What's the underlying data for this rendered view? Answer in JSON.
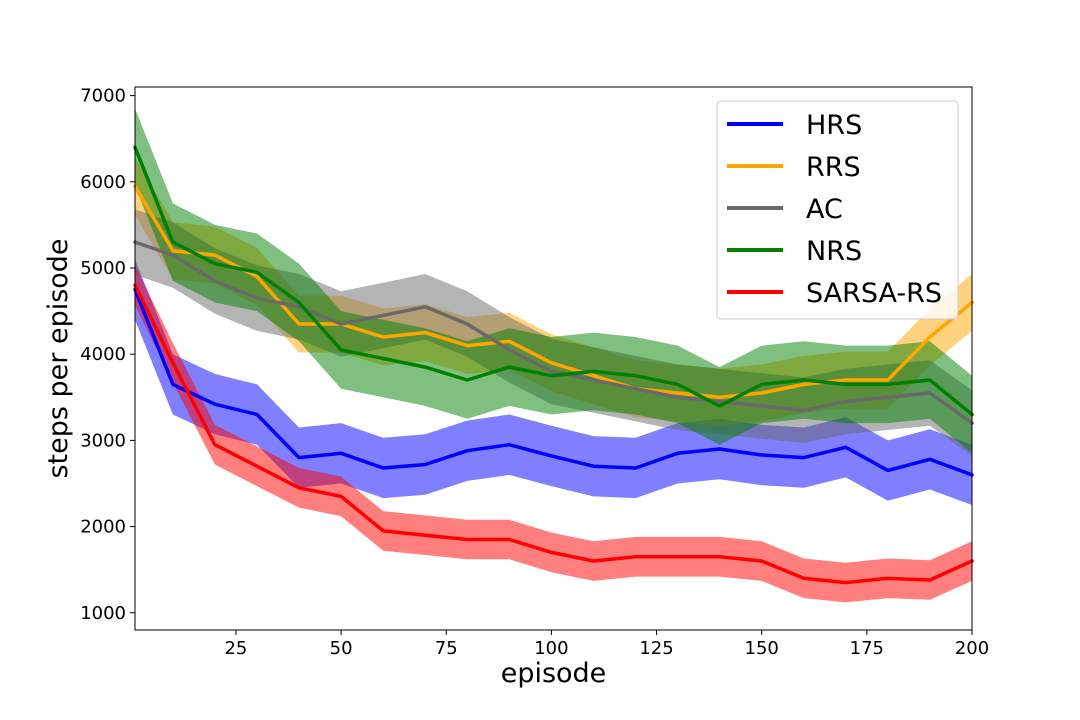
{
  "chart_data": {
    "type": "line",
    "title": "",
    "xlabel": "episode",
    "ylabel": "steps per episode",
    "xlim": [
      1,
      200
    ],
    "ylim": [
      800,
      7100
    ],
    "xticks": [
      25,
      50,
      75,
      100,
      125,
      150,
      175,
      200
    ],
    "yticks": [
      1000,
      2000,
      3000,
      4000,
      5000,
      6000,
      7000
    ],
    "grid": false,
    "legend_position": "top-right",
    "x": [
      1,
      10,
      20,
      30,
      40,
      50,
      60,
      70,
      80,
      90,
      100,
      110,
      120,
      130,
      140,
      150,
      160,
      170,
      180,
      190,
      200
    ],
    "series": [
      {
        "name": "HRS",
        "color": "#0000ff",
        "values": [
          4750,
          3650,
          3420,
          3300,
          2800,
          2850,
          2680,
          2720,
          2880,
          2950,
          2820,
          2700,
          2680,
          2850,
          2900,
          2830,
          2800,
          2920,
          2650,
          2780,
          2600
        ],
        "band": 350
      },
      {
        "name": "RRS",
        "color": "#ffa500",
        "values": [
          5950,
          5200,
          5150,
          4900,
          4350,
          4350,
          4200,
          4250,
          4100,
          4150,
          3900,
          3750,
          3600,
          3550,
          3500,
          3550,
          3650,
          3700,
          3700,
          4200,
          4600
        ],
        "band": 330
      },
      {
        "name": "AC",
        "color": "#696969",
        "values": [
          5300,
          5150,
          4850,
          4650,
          4550,
          4350,
          4450,
          4550,
          4350,
          4050,
          3800,
          3700,
          3600,
          3500,
          3450,
          3400,
          3350,
          3450,
          3500,
          3550,
          3200
        ],
        "band": 380
      },
      {
        "name": "NRS",
        "color": "#008000",
        "values": [
          6400,
          5300,
          5050,
          4950,
          4600,
          4050,
          3950,
          3850,
          3700,
          3850,
          3750,
          3800,
          3750,
          3650,
          3400,
          3650,
          3700,
          3650,
          3650,
          3700,
          3300
        ],
        "band": 450
      },
      {
        "name": "SARSA-RS",
        "color": "#ff0000",
        "values": [
          4800,
          3900,
          2950,
          2700,
          2450,
          2350,
          1950,
          1900,
          1850,
          1850,
          1700,
          1600,
          1650,
          1650,
          1650,
          1600,
          1400,
          1350,
          1400,
          1380,
          1600
        ],
        "band": 230
      }
    ]
  }
}
